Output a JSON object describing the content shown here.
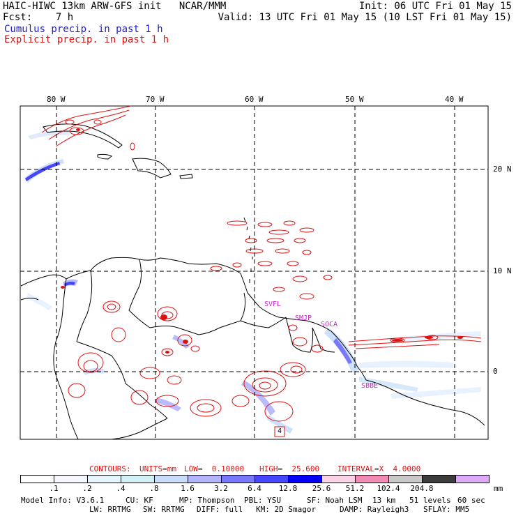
{
  "header": {
    "title": "HAIC-HIWC 13km ARW-GFS init   NCAR/MMM",
    "fcst": "Fcst:    7 h",
    "init": "Init: 06 UTC Fri 01 May 15",
    "valid": "Valid: 13 UTC Fri 01 May 15 (10 LST Fri 01 May 15)",
    "legend_cumulus": "Cumulus precip. in past 1 h",
    "legend_explicit": "Explicit precip. in past 1 h"
  },
  "map": {
    "lon_labels": [
      "80 W",
      "70 W",
      "60 W",
      "50 W",
      "40 W"
    ],
    "lat_labels": [
      "20 N",
      "10 N",
      "0"
    ],
    "stations": [
      "SVFL",
      "SMJP",
      "SOCA",
      "SBBE"
    ],
    "max_marker": "4",
    "colors": {
      "cumulus": "#3a3ad8",
      "explicit": "#e01010"
    }
  },
  "contours": {
    "text_prefix": "CONTOURS:",
    "units": "UNITS=mm",
    "low": "LOW=  0.10000",
    "high": "HIGH=  25.600",
    "interval": "INTERVAL=X  4.0000"
  },
  "colorbar": {
    "labels": [
      ".1",
      ".2",
      ".4",
      ".8",
      "1.6",
      "3.2",
      "6.4",
      "12.8",
      "25.6",
      "51.2",
      "102.4",
      "204.8"
    ],
    "unit": "mm",
    "colors": [
      "#ffffff",
      "#f6f6ff",
      "#e6f6ff",
      "#d2f0f6",
      "#c8dcfa",
      "#b4b4fa",
      "#7878fa",
      "#4646fa",
      "#0000fa",
      "#fad2e6",
      "#f08cb4",
      "#c8c8c8",
      "#3c3c3c",
      "#dcaaf8"
    ]
  },
  "model_info": {
    "line1": [
      "Model Info: V3.6.1",
      "CU: KF",
      "MP: Thompson",
      "PBL: YSU",
      "SF: Noah LSM",
      "13 km",
      "51 levels",
      "60 sec"
    ],
    "line2": [
      "LW: RRTMG",
      "SW: RRTMG",
      "DIFF: full",
      "KM: 2D Smagor",
      "DAMP: Rayleigh3",
      "SFLAY: MM5"
    ]
  }
}
